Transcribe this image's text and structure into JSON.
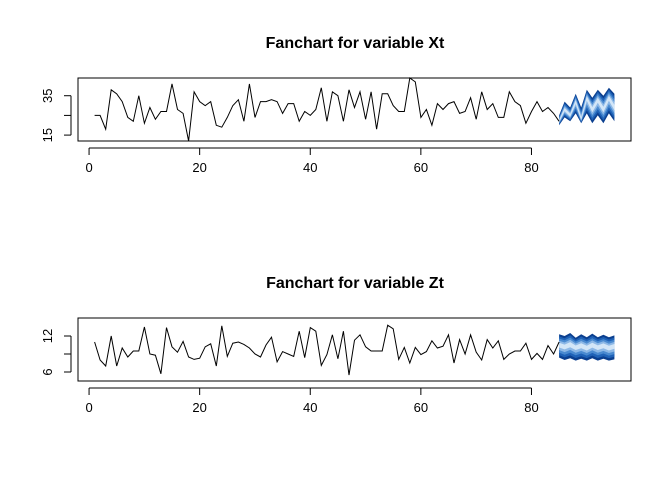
{
  "chart_data": [
    {
      "type": "line",
      "title": "Fanchart for variable Xt",
      "xlabel": "",
      "ylabel": "",
      "xlim": [
        -2,
        98
      ],
      "ylim": [
        12,
        44
      ],
      "xticks": [
        0,
        20,
        40,
        60,
        80
      ],
      "yticks": [
        15,
        25,
        35
      ],
      "ytick_labels": [
        "15",
        "",
        "35"
      ],
      "grid": false,
      "series": [
        {
          "x": [
            1,
            2,
            3,
            4,
            5,
            6,
            7,
            8,
            9,
            10,
            11,
            12,
            13,
            14,
            15,
            16,
            17,
            18,
            19,
            20,
            21,
            22,
            23,
            24,
            25,
            26,
            27,
            28,
            29,
            30,
            31,
            32,
            33,
            34,
            35,
            36,
            37,
            38,
            39,
            40,
            41,
            42,
            43,
            44,
            45,
            46,
            47,
            48,
            49,
            50,
            51,
            52,
            53,
            54,
            55,
            56,
            57,
            58,
            59,
            60,
            61,
            62,
            63,
            64,
            65,
            66,
            67,
            68,
            69,
            70,
            71,
            72,
            73,
            74,
            75,
            76,
            77,
            78,
            79,
            80,
            81,
            82,
            83,
            84,
            85
          ],
          "values": [
            25,
            25,
            18,
            38,
            36,
            32,
            24,
            22,
            35,
            21,
            29,
            23,
            27,
            27,
            41,
            28,
            26,
            12,
            37,
            32,
            30,
            32,
            20,
            19,
            24,
            30,
            33,
            22,
            41,
            24,
            32,
            32,
            33,
            32,
            26,
            31,
            31,
            22,
            27,
            25,
            28,
            39,
            22,
            37,
            35,
            22,
            38,
            29,
            37,
            23,
            37,
            18,
            36,
            36,
            30,
            27,
            27,
            44,
            42,
            24,
            28,
            20,
            31,
            28,
            31,
            32,
            26,
            27,
            34,
            23,
            37,
            28,
            31,
            24,
            24,
            37,
            32,
            30,
            21,
            27,
            32,
            27,
            29,
            26,
            22
          ]
        }
      ],
      "forecast": {
        "x": [
          85,
          86,
          87,
          88,
          89,
          90,
          91,
          92,
          93,
          94,
          95
        ],
        "median": [
          22,
          28,
          25,
          32,
          23,
          34,
          28,
          33,
          28,
          34,
          29
        ],
        "lower": [
          20,
          24,
          22,
          26,
          21,
          26,
          21,
          25,
          21,
          26,
          22
        ],
        "upper": [
          25,
          32,
          29,
          36,
          29,
          38,
          34,
          38,
          35,
          39,
          36
        ],
        "colors": [
          "#0b3f8f",
          "#1f62b7",
          "#4a8ad0",
          "#8db8e6",
          "#d3e6f7"
        ]
      }
    },
    {
      "type": "line",
      "title": "Fanchart for variable Zt",
      "xlabel": "",
      "ylabel": "",
      "xlim": [
        -2,
        98
      ],
      "ylim": [
        4.5,
        15
      ],
      "xticks": [
        0,
        20,
        40,
        60,
        80
      ],
      "yticks": [
        6,
        9,
        12
      ],
      "ytick_labels": [
        "6",
        "",
        "12"
      ],
      "grid": false,
      "series": [
        {
          "x": [
            1,
            2,
            3,
            4,
            5,
            6,
            7,
            8,
            9,
            10,
            11,
            12,
            13,
            14,
            15,
            16,
            17,
            18,
            19,
            20,
            21,
            22,
            23,
            24,
            25,
            26,
            27,
            28,
            29,
            30,
            31,
            32,
            33,
            34,
            35,
            36,
            37,
            38,
            39,
            40,
            41,
            42,
            43,
            44,
            45,
            46,
            47,
            48,
            49,
            50,
            51,
            52,
            53,
            54,
            55,
            56,
            57,
            58,
            59,
            60,
            61,
            62,
            63,
            64,
            65,
            66,
            67,
            68,
            69,
            70,
            71,
            72,
            73,
            74,
            75,
            76,
            77,
            78,
            79,
            80,
            81,
            82,
            83,
            84,
            85
          ],
          "values": [
            11,
            8,
            7,
            12,
            7,
            10,
            8.5,
            9.5,
            9.5,
            13.5,
            9,
            8.8,
            5.7,
            13.4,
            10.2,
            9.3,
            11.1,
            8.5,
            8.1,
            8.3,
            10.2,
            10.7,
            7,
            13.7,
            8.6,
            10.8,
            11,
            10.6,
            10,
            9,
            8.5,
            10.5,
            11.8,
            7.7,
            9.4,
            9,
            8.6,
            12.8,
            8.4,
            13.4,
            12.8,
            7.1,
            8.9,
            12.2,
            8.2,
            12.8,
            5.5,
            11.3,
            12.2,
            10.2,
            9.5,
            9.5,
            9.5,
            13.8,
            13.2,
            8.1,
            10.1,
            7.5,
            10.1,
            8.9,
            9.4,
            11.2,
            10,
            10.3,
            12.2,
            7.5,
            11.4,
            9,
            12.2,
            9.3,
            8,
            11.4,
            10,
            11.2,
            8.1,
            9,
            9.5,
            9.5,
            10.8,
            8.1,
            9.1,
            8.1,
            10.4,
            9,
            11
          ]
        }
      ],
      "forecast": {
        "x": [
          85,
          86,
          87,
          88,
          89,
          90,
          91,
          92,
          93,
          94,
          95
        ],
        "median": [
          10.5,
          10.2,
          10.6,
          10.1,
          10.4,
          10.0,
          10.5,
          10.1,
          10.4,
          10.0,
          10.3
        ],
        "lower": [
          8.4,
          8.0,
          8.3,
          7.9,
          8.2,
          7.9,
          8.3,
          7.9,
          8.2,
          7.9,
          8.1
        ],
        "upper": [
          12.3,
          12.0,
          12.5,
          11.7,
          12.3,
          11.8,
          12.4,
          11.8,
          12.2,
          11.8,
          12.1
        ],
        "colors": [
          "#0b3f8f",
          "#1f62b7",
          "#4a8ad0",
          "#8db8e6",
          "#d3e6f7"
        ]
      }
    }
  ]
}
